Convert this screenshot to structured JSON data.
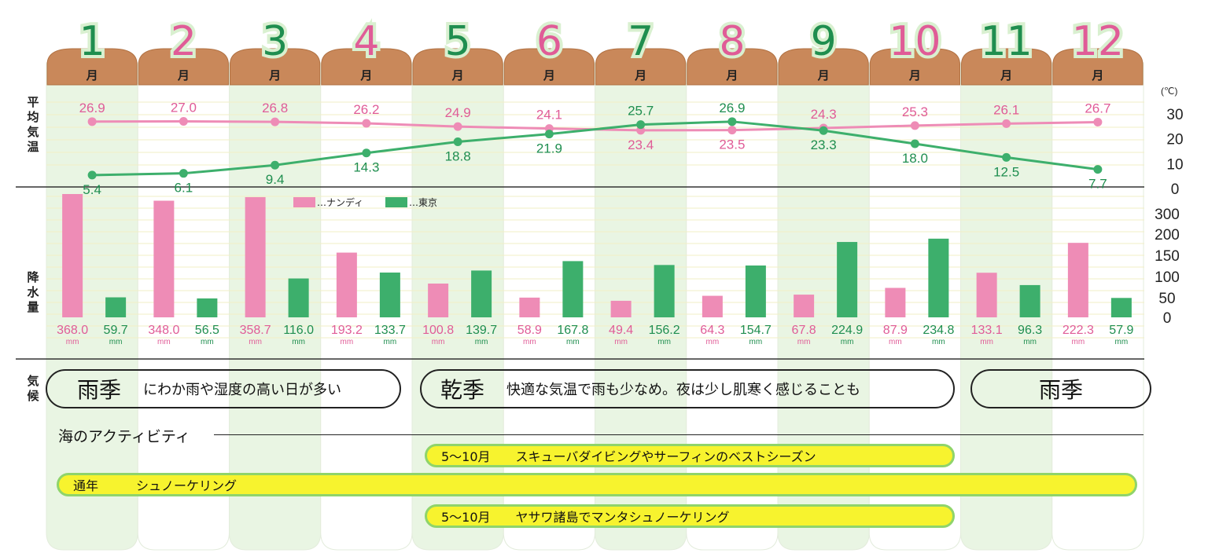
{
  "months": [
    "1",
    "2",
    "3",
    "4",
    "5",
    "6",
    "7",
    "8",
    "9",
    "10",
    "11",
    "12"
  ],
  "month_unit": "月",
  "labels": {
    "temperature": "平均気温",
    "rainfall": "降水量",
    "climate": "気候"
  },
  "colors": {
    "nandi": "#ee8cb6",
    "tokyo": "#3daf6c",
    "nandi_text": "#e05c97",
    "tokyo_text": "#1f8e4f"
  },
  "chart_data": {
    "type": "line+bar",
    "categories": [
      "1",
      "2",
      "3",
      "4",
      "5",
      "6",
      "7",
      "8",
      "9",
      "10",
      "11",
      "12"
    ],
    "temperature": {
      "unit": "(℃)",
      "ticks": [
        "30",
        "20",
        "10",
        "0"
      ],
      "ylim": [
        0,
        30
      ],
      "series": [
        {
          "name": "ナンディ",
          "values": [
            26.9,
            27.0,
            26.8,
            26.2,
            24.9,
            24.1,
            23.4,
            23.5,
            24.3,
            25.3,
            26.1,
            26.7
          ]
        },
        {
          "name": "東京",
          "values": [
            5.4,
            6.1,
            9.4,
            14.3,
            18.8,
            21.9,
            25.7,
            26.9,
            23.3,
            18.0,
            12.5,
            7.7
          ]
        }
      ]
    },
    "rainfall": {
      "unit": "mm",
      "ticks": [
        "300",
        "200",
        "150",
        "100",
        "50",
        "0"
      ],
      "series": [
        {
          "name": "ナンディ",
          "values": [
            368.0,
            348.0,
            358.7,
            193.2,
            100.8,
            58.9,
            49.4,
            64.3,
            67.8,
            87.9,
            133.1,
            222.3
          ]
        },
        {
          "name": "東京",
          "values": [
            59.7,
            56.5,
            116.0,
            133.7,
            139.7,
            167.8,
            156.2,
            154.7,
            224.9,
            234.8,
            96.3,
            57.9
          ]
        }
      ]
    },
    "legend": [
      "…ナンディ",
      "…東京"
    ]
  },
  "climate": [
    {
      "big": "雨季",
      "desc": "にわか雨や湿度の高い日が多い",
      "color": "#bfe3e6"
    },
    {
      "big": "乾季",
      "desc": "快適な気温で雨も少なめ。夜は少し肌寒く感じることも",
      "color": "#f7f32e"
    },
    {
      "big": "雨季",
      "desc": "",
      "color": "#bfe3e6"
    }
  ],
  "activities": {
    "title": "海のアクティビティ",
    "items": [
      {
        "period": "5〜10月",
        "text": "スキューバダイビングやサーフィンのベストシーズン"
      },
      {
        "period": "通年",
        "text": "シュノーケリング"
      },
      {
        "period": "5〜10月",
        "text": "ヤサワ諸島でマンタシュノーケリング"
      }
    ]
  }
}
